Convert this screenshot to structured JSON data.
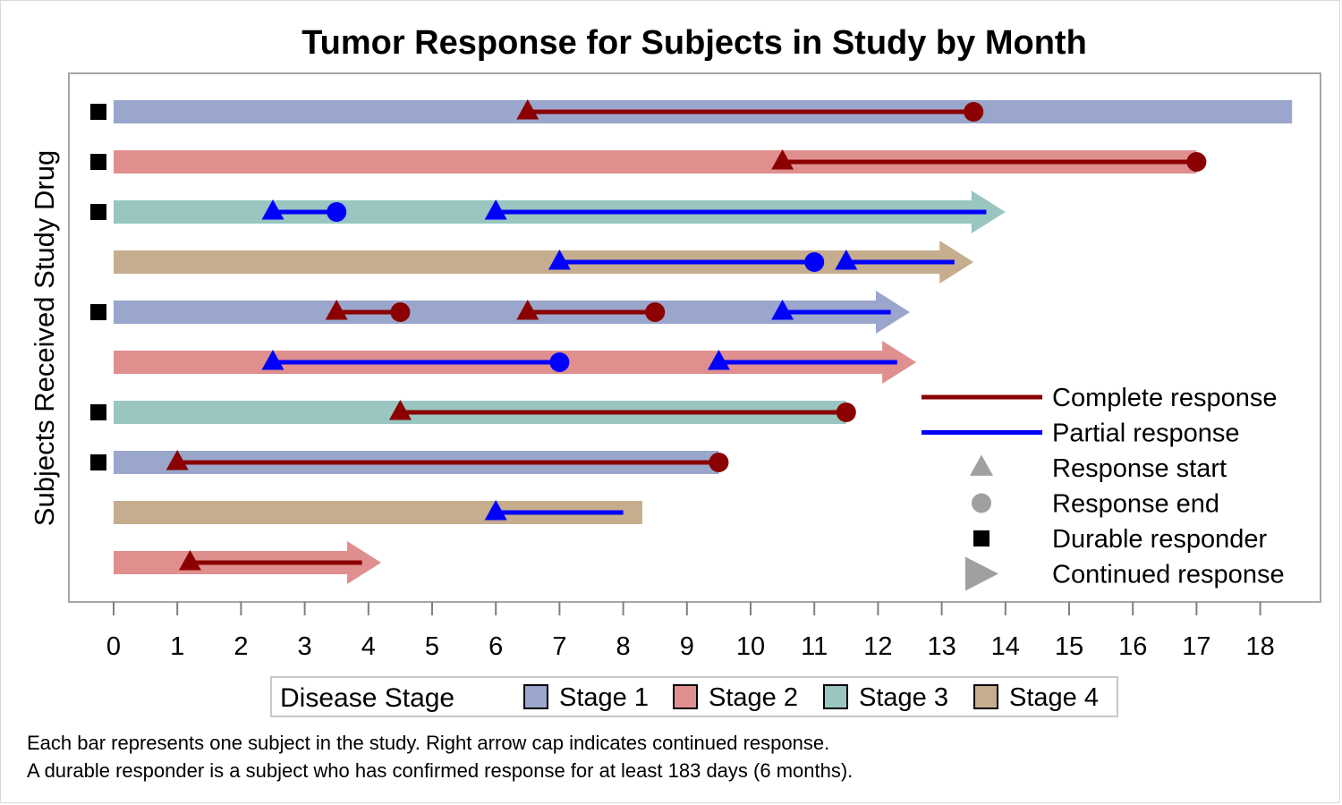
{
  "chart_data": {
    "type": "bar",
    "title": "Tumor Response for Subjects in Study by Month",
    "ylabel": "Subjects Received Study Drug",
    "xlabel": "",
    "xlim": [
      0,
      18
    ],
    "x_ticks": [
      0,
      1,
      2,
      3,
      4,
      5,
      6,
      7,
      8,
      9,
      10,
      11,
      12,
      13,
      14,
      15,
      16,
      17,
      18
    ],
    "grid": false,
    "colors": {
      "stage1": "#9aa6cc",
      "stage2": "#e08f8f",
      "stage3": "#99c6c1",
      "stage4": "#c6ad8e",
      "complete": "#8b0000",
      "partial": "#0000ff",
      "marker_gray": "#a0a0a0"
    },
    "subjects": [
      {
        "stage": 1,
        "end": 18.5,
        "durable": true,
        "arrow": false,
        "responses": [
          {
            "type": "complete",
            "start": 6.5,
            "end": 13.5,
            "end_marker": true
          }
        ]
      },
      {
        "stage": 2,
        "end": 17.0,
        "durable": true,
        "arrow": false,
        "responses": [
          {
            "type": "complete",
            "start": 10.5,
            "end": 17.0,
            "end_marker": true
          }
        ]
      },
      {
        "stage": 3,
        "end": 14.0,
        "durable": true,
        "arrow": true,
        "responses": [
          {
            "type": "partial",
            "start": 2.5,
            "end": 3.5,
            "end_marker": true
          },
          {
            "type": "partial",
            "start": 6.0,
            "end": 13.7,
            "end_marker": false
          }
        ]
      },
      {
        "stage": 4,
        "end": 13.5,
        "durable": false,
        "arrow": true,
        "responses": [
          {
            "type": "partial",
            "start": 7.0,
            "end": 11.0,
            "end_marker": true
          },
          {
            "type": "partial",
            "start": 11.5,
            "end": 13.2,
            "end_marker": false
          }
        ]
      },
      {
        "stage": 1,
        "end": 12.5,
        "durable": true,
        "arrow": true,
        "responses": [
          {
            "type": "complete",
            "start": 3.5,
            "end": 4.5,
            "end_marker": true
          },
          {
            "type": "complete",
            "start": 6.5,
            "end": 8.5,
            "end_marker": true
          },
          {
            "type": "partial",
            "start": 10.5,
            "end": 12.2,
            "end_marker": false
          }
        ]
      },
      {
        "stage": 2,
        "end": 12.6,
        "durable": false,
        "arrow": true,
        "responses": [
          {
            "type": "partial",
            "start": 2.5,
            "end": 7.0,
            "end_marker": true
          },
          {
            "type": "partial",
            "start": 9.5,
            "end": 12.3,
            "end_marker": false
          }
        ]
      },
      {
        "stage": 3,
        "end": 11.5,
        "durable": true,
        "arrow": false,
        "responses": [
          {
            "type": "complete",
            "start": 4.5,
            "end": 11.5,
            "end_marker": true
          }
        ]
      },
      {
        "stage": 1,
        "end": 9.5,
        "durable": true,
        "arrow": false,
        "responses": [
          {
            "type": "complete",
            "start": 1.0,
            "end": 9.5,
            "end_marker": true
          }
        ]
      },
      {
        "stage": 4,
        "end": 8.3,
        "durable": false,
        "arrow": false,
        "responses": [
          {
            "type": "partial",
            "start": 6.0,
            "end": 8.0,
            "end_marker": false
          }
        ]
      },
      {
        "stage": 2,
        "end": 4.2,
        "durable": false,
        "arrow": true,
        "responses": [
          {
            "type": "complete",
            "start": 1.2,
            "end": 3.9,
            "end_marker": false
          }
        ]
      }
    ],
    "legend_inside": {
      "placement": "bottom-right",
      "items": [
        {
          "key": "complete",
          "label": "Complete response"
        },
        {
          "key": "partial",
          "label": "Partial response"
        },
        {
          "key": "start",
          "label": "Response start"
        },
        {
          "key": "end",
          "label": "Response end"
        },
        {
          "key": "durable",
          "label": "Durable responder"
        },
        {
          "key": "arrow",
          "label": "Continued response"
        }
      ]
    },
    "legend_stage": {
      "placement": "bottom",
      "title": "Disease Stage",
      "items": [
        {
          "stage": 1,
          "label": "Stage 1"
        },
        {
          "stage": 2,
          "label": "Stage 2"
        },
        {
          "stage": 3,
          "label": "Stage 3"
        },
        {
          "stage": 4,
          "label": "Stage 4"
        }
      ]
    }
  },
  "footnotes": [
    "Each bar represents one subject in the study.  Right arrow cap indicates continued response.",
    "A durable responder is a subject who has confirmed response for at least 183 days (6 months)."
  ]
}
